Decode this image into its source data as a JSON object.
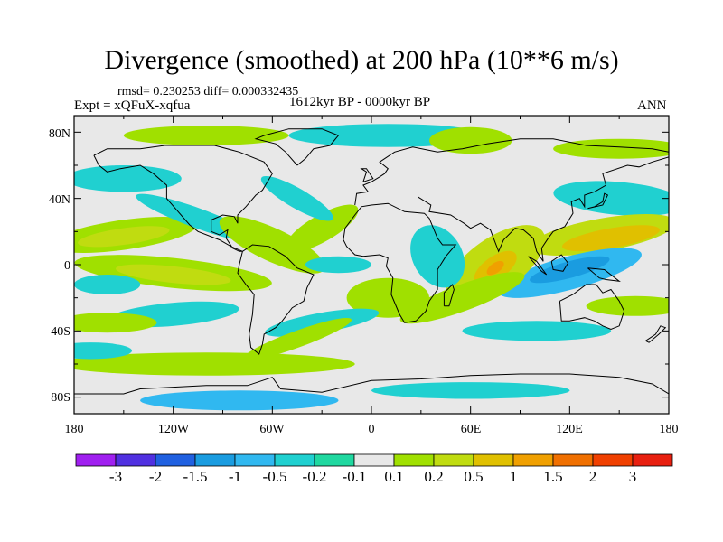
{
  "title": "Divergence (smoothed) at 200 hPa (10**6 m/s)",
  "stats": {
    "rmsd": "rmsd= 0.230253",
    "diff": "diff= 0.000332435",
    "expt": "Expt = xQFuX-xqfua",
    "period": "1612kyr BP - 0000kyr BP",
    "season": "ANN"
  },
  "axes": {
    "y_ticks": [
      "80N",
      "40N",
      "0",
      "40S",
      "80S"
    ],
    "x_ticks": [
      "180",
      "120W",
      "60W",
      "0",
      "60E",
      "120E",
      "180"
    ]
  },
  "colorbar": {
    "labels": [
      "-3",
      "-2",
      "-1.5",
      "-1",
      "-0.5",
      "-0.2",
      "-0.1",
      "0.1",
      "0.2",
      "0.5",
      "1",
      "1.5",
      "2",
      "3"
    ],
    "colors": [
      "#a020f0",
      "#5030e0",
      "#2060e0",
      "#1a9ce0",
      "#30b8f0",
      "#20d0d0",
      "#20d8a0",
      "#e8e8e8",
      "#a0e000",
      "#c0dc10",
      "#e0c000",
      "#f0a000",
      "#f07000",
      "#f04000",
      "#e82010"
    ]
  },
  "chart_data": {
    "type": "heatmap",
    "title": "Divergence (smoothed) at 200 hPa (10**6 m/s)",
    "variable": "200 hPa divergence difference",
    "lon_range": [
      -180,
      180
    ],
    "lat_range": [
      -90,
      90
    ],
    "levels": [
      -3,
      -2,
      -1.5,
      -1,
      -0.5,
      -0.2,
      -0.1,
      0.1,
      0.2,
      0.5,
      1,
      1.5,
      2,
      3
    ],
    "features": [
      {
        "region": "Indian Ocean (eq, ~75E)",
        "value": 1.5
      },
      {
        "region": "West Pacific (~15N, 140E)",
        "value": 1.0
      },
      {
        "region": "Maritime Continent (~5S, 120E)",
        "value": -1.0
      },
      {
        "region": "Central Pacific (~20N, 170W)",
        "value": 0.5
      },
      {
        "region": "Eastern Pacific (~5S, 120W)",
        "value": 0.5
      },
      {
        "region": "Arctic (~75N)",
        "value": 0.2
      },
      {
        "region": "Southern Ocean (~70S)",
        "value": -0.5
      }
    ]
  }
}
